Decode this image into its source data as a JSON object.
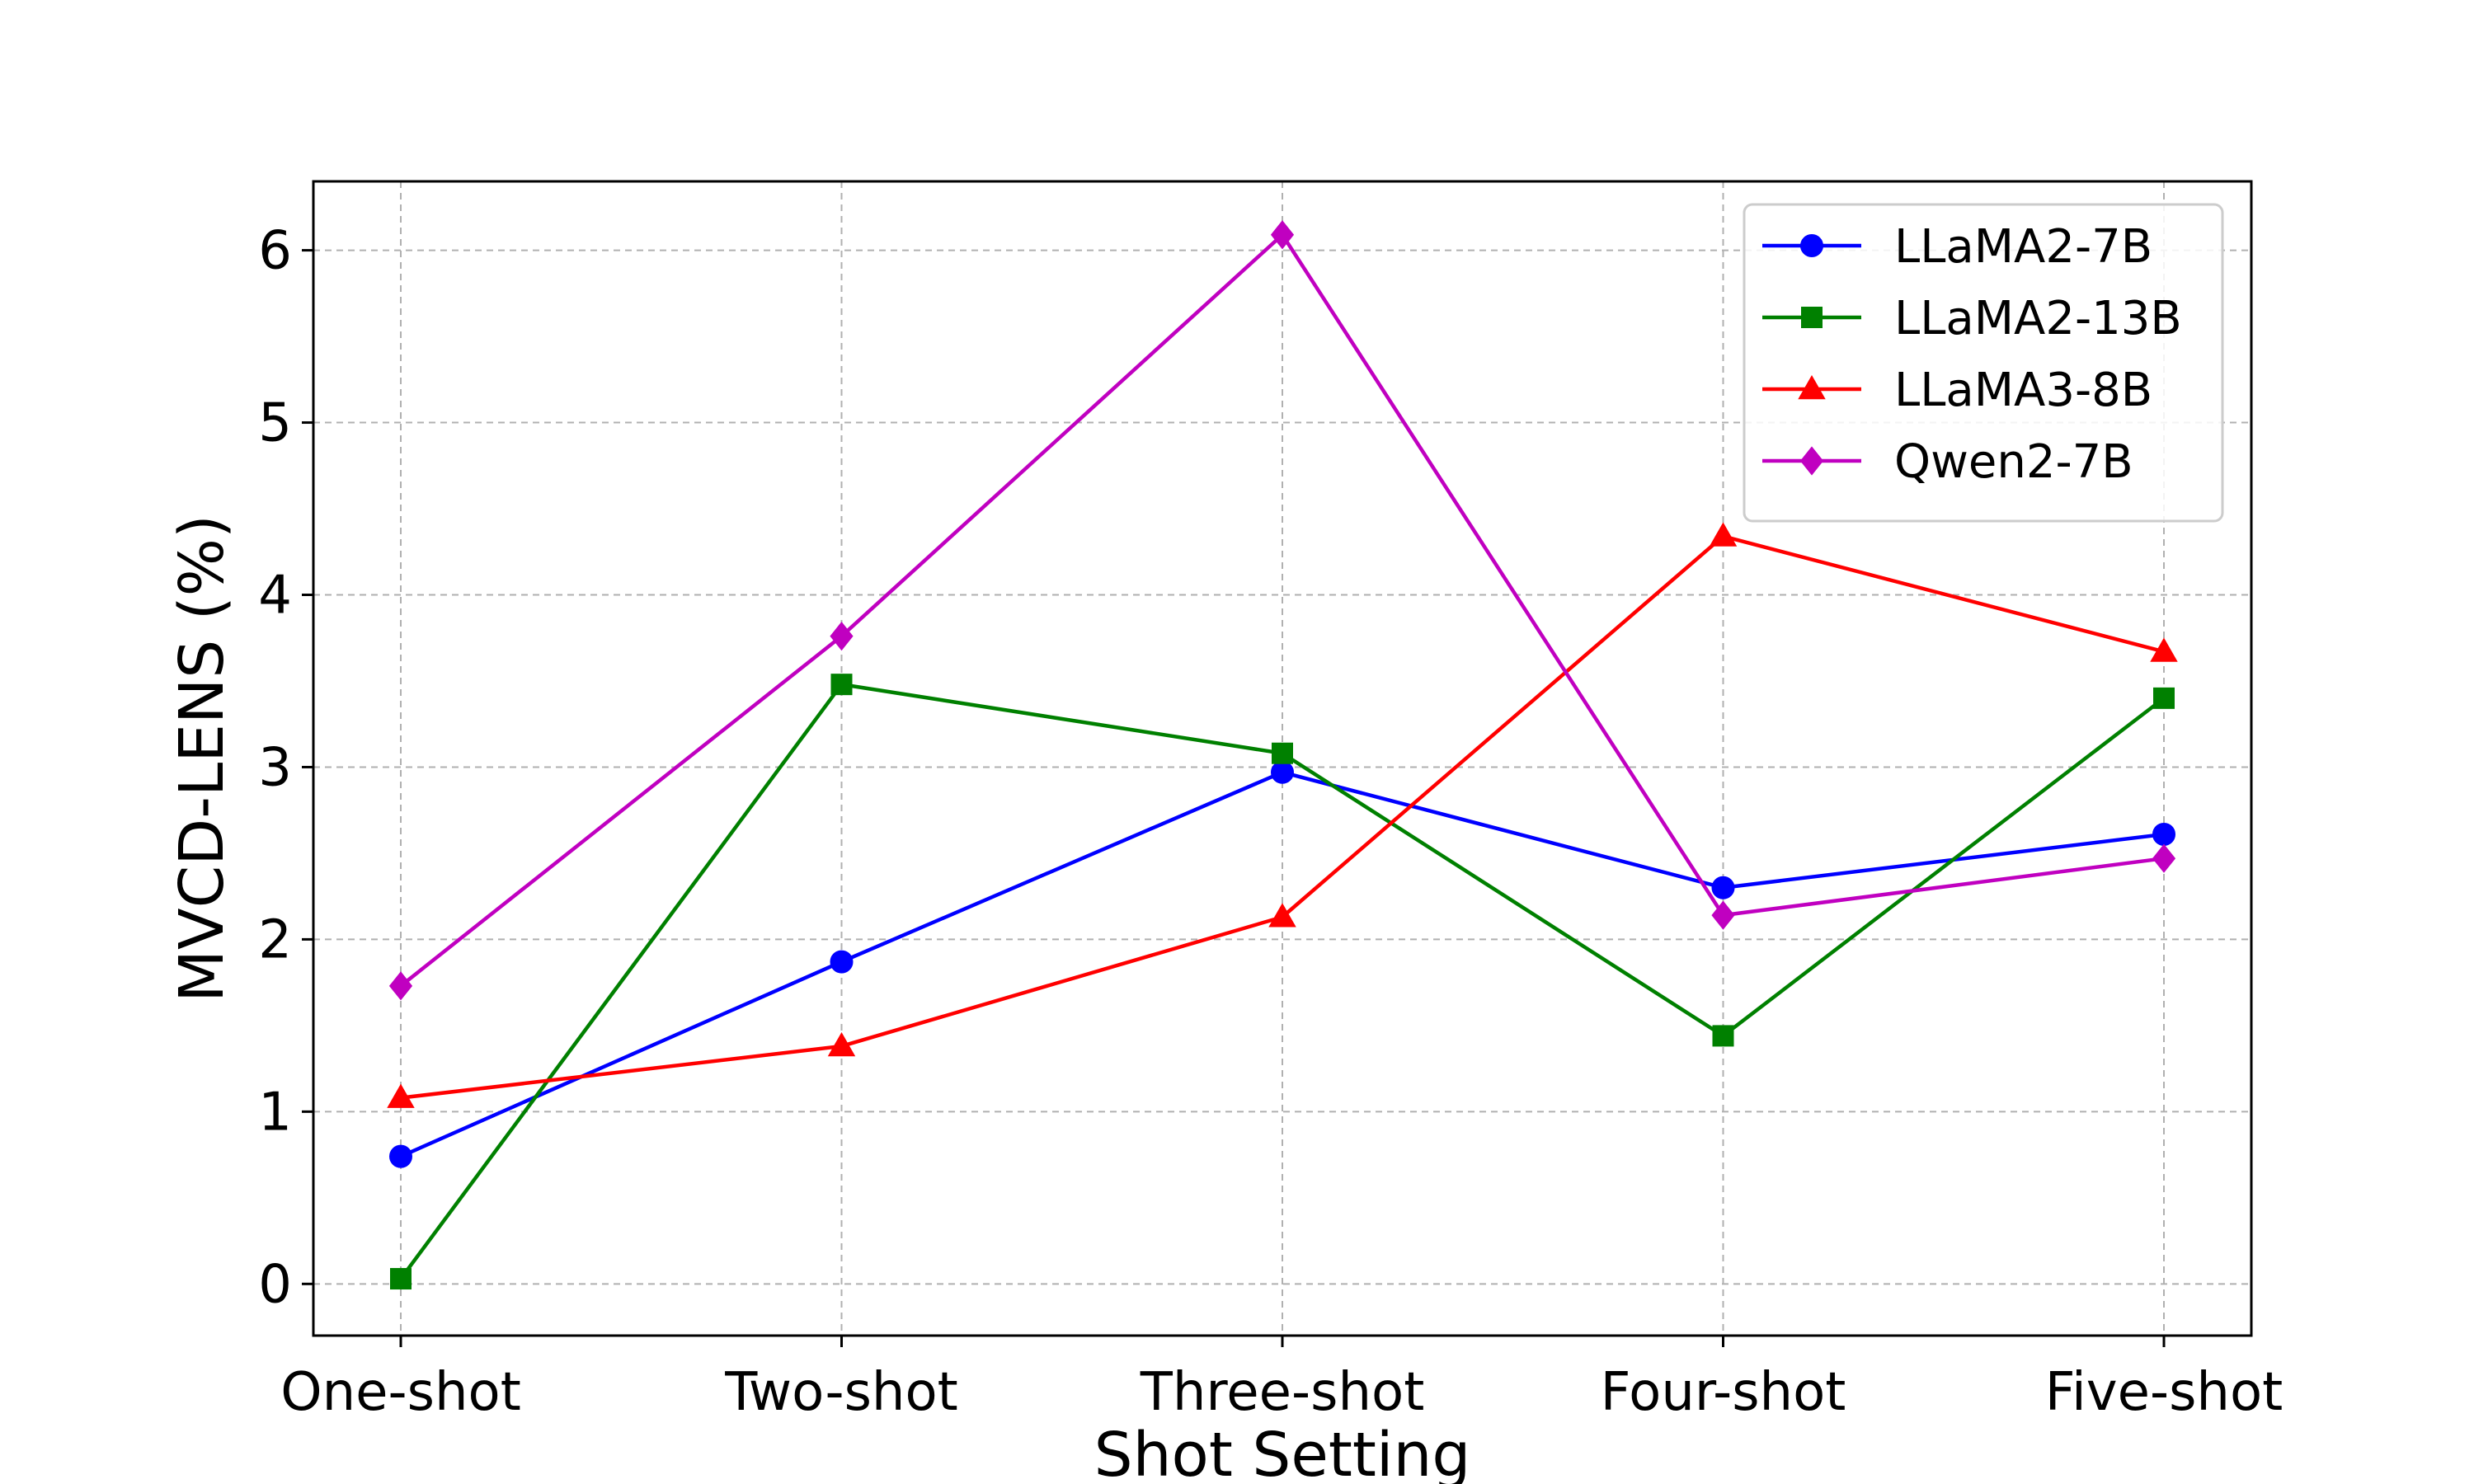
{
  "chart_data": {
    "type": "line",
    "title": "",
    "xlabel": "Shot Setting",
    "ylabel": "MVCD-LENS (%)",
    "categories": [
      "One-shot",
      "Two-shot",
      "Three-shot",
      "Four-shot",
      "Five-shot"
    ],
    "ylim": [
      -0.3,
      6.4
    ],
    "yticks": [
      0,
      1,
      2,
      3,
      4,
      5,
      6
    ],
    "grid": true,
    "legend_position": "top-right",
    "series": [
      {
        "name": "LLaMA2-7B",
        "color": "#0000ff",
        "marker": "circle",
        "values": [
          0.74,
          1.87,
          2.97,
          2.3,
          2.61
        ]
      },
      {
        "name": "LLaMA2-13B",
        "color": "#008000",
        "marker": "square",
        "values": [
          0.03,
          3.48,
          3.08,
          1.44,
          3.4
        ]
      },
      {
        "name": "LLaMA3-8B",
        "color": "#ff0000",
        "marker": "triangle",
        "values": [
          1.08,
          1.38,
          2.13,
          4.34,
          3.67
        ]
      },
      {
        "name": "Qwen2-7B",
        "color": "#c000c0",
        "marker": "diamond",
        "values": [
          1.73,
          3.76,
          6.09,
          2.14,
          2.47
        ]
      }
    ]
  }
}
